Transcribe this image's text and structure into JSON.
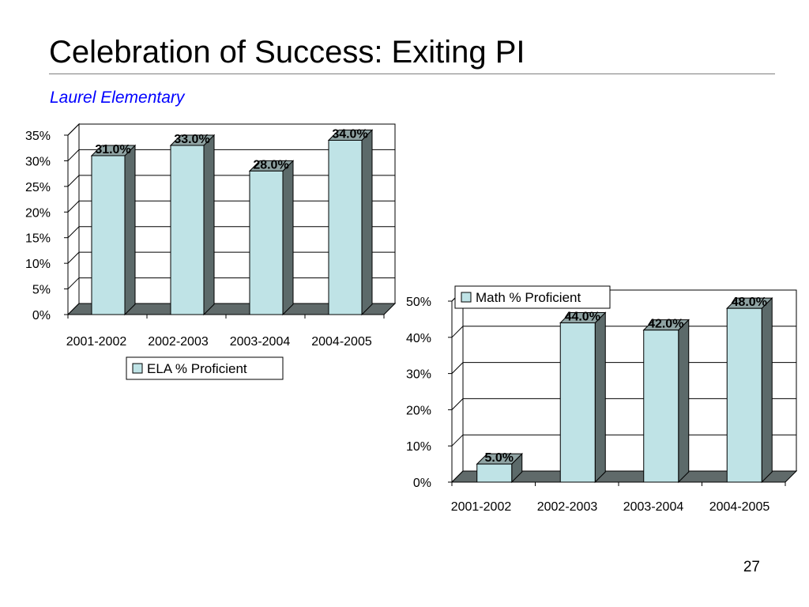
{
  "slide": {
    "title": "Celebration of Success: Exiting PI",
    "subtitle": "Laurel Elementary",
    "page_number": "27"
  },
  "colors": {
    "bar_front": "#bfe3e6",
    "bar_side": "#5c6a6a",
    "bar_top": "#8fa3a3",
    "floor": "#606a6a",
    "subtitle": "#0000ff"
  },
  "chart_data": [
    {
      "type": "bar",
      "categories": [
        "2001-2002",
        "2002-2003",
        "2003-2004",
        "2004-2005"
      ],
      "series": [
        {
          "name": "ELA % Proficient",
          "values": [
            31.0,
            33.0,
            28.0,
            34.0
          ]
        }
      ],
      "value_labels": [
        "31.0%",
        "33.0%",
        "28.0%",
        "34.0%"
      ],
      "yticks": [
        "0%",
        "5%",
        "10%",
        "15%",
        "20%",
        "25%",
        "30%",
        "35%"
      ],
      "ylim": [
        0,
        35
      ],
      "grid": true,
      "legend_position": "bottom",
      "style": "3d"
    },
    {
      "type": "bar",
      "categories": [
        "2001-2002",
        "2002-2003",
        "2003-2004",
        "2004-2005"
      ],
      "series": [
        {
          "name": "Math % Proficient",
          "values": [
            5.0,
            44.0,
            42.0,
            48.0
          ]
        }
      ],
      "value_labels": [
        "5.0%",
        "44.0%",
        "42.0%",
        "48.0%"
      ],
      "yticks": [
        "0%",
        "10%",
        "20%",
        "30%",
        "40%",
        "50%"
      ],
      "ylim": [
        0,
        50
      ],
      "grid": true,
      "legend_position": "top",
      "style": "3d"
    }
  ]
}
